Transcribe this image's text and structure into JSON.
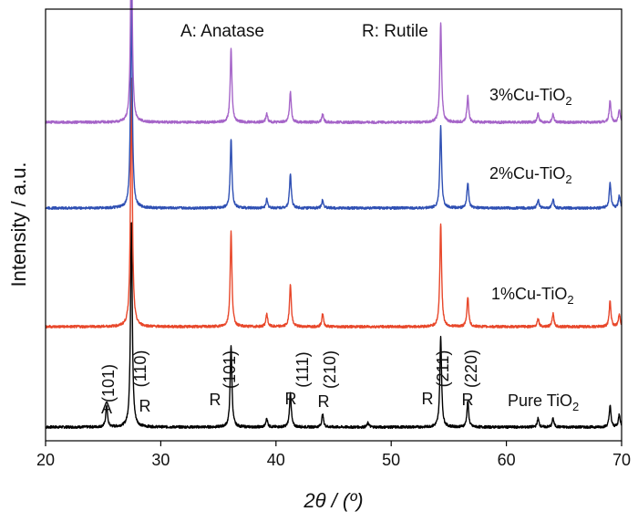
{
  "chart_data": {
    "type": "line",
    "xlabel": "2θ / (º)",
    "ylabel": "Intensity / a.u.",
    "xlim": [
      20,
      70
    ],
    "xticks": [
      "20",
      "30",
      "40",
      "50",
      "60",
      "70"
    ],
    "legend": [
      {
        "text": "A: Anatase"
      },
      {
        "text": "R: Rutile"
      }
    ],
    "series": [
      {
        "name": "Pure TiO",
        "subscript": "2",
        "color": "#000000",
        "label_id": "pure",
        "peaks": [
          {
            "x": 25.3,
            "h": 0.05
          },
          {
            "x": 27.45,
            "h": 0.48
          },
          {
            "x": 36.1,
            "h": 0.19
          },
          {
            "x": 39.2,
            "h": 0.02
          },
          {
            "x": 41.25,
            "h": 0.08
          },
          {
            "x": 44.05,
            "h": 0.03
          },
          {
            "x": 48.0,
            "h": 0.01
          },
          {
            "x": 54.3,
            "h": 0.21
          },
          {
            "x": 56.65,
            "h": 0.06
          },
          {
            "x": 62.75,
            "h": 0.02
          },
          {
            "x": 64.05,
            "h": 0.02
          },
          {
            "x": 69.0,
            "h": 0.05
          },
          {
            "x": 69.8,
            "h": 0.03
          }
        ]
      },
      {
        "name": "1%Cu-TiO",
        "subscript": "2",
        "color": "#e8472a",
        "label_id": "cu1",
        "peaks": [
          {
            "x": 27.45,
            "h": 0.58
          },
          {
            "x": 36.1,
            "h": 0.22
          },
          {
            "x": 39.2,
            "h": 0.03
          },
          {
            "x": 41.25,
            "h": 0.1
          },
          {
            "x": 44.05,
            "h": 0.03
          },
          {
            "x": 54.3,
            "h": 0.24
          },
          {
            "x": 56.65,
            "h": 0.07
          },
          {
            "x": 62.75,
            "h": 0.02
          },
          {
            "x": 64.05,
            "h": 0.03
          },
          {
            "x": 69.0,
            "h": 0.06
          },
          {
            "x": 69.8,
            "h": 0.03
          }
        ]
      },
      {
        "name": "2%Cu-TiO",
        "subscript": "2",
        "color": "#2e4fb3",
        "label_id": "cu2",
        "peaks": [
          {
            "x": 27.45,
            "h": 0.49
          },
          {
            "x": 36.1,
            "h": 0.16
          },
          {
            "x": 39.2,
            "h": 0.02
          },
          {
            "x": 41.25,
            "h": 0.08
          },
          {
            "x": 44.05,
            "h": 0.02
          },
          {
            "x": 54.3,
            "h": 0.19
          },
          {
            "x": 56.65,
            "h": 0.06
          },
          {
            "x": 62.75,
            "h": 0.02
          },
          {
            "x": 64.05,
            "h": 0.02
          },
          {
            "x": 69.0,
            "h": 0.06
          },
          {
            "x": 69.8,
            "h": 0.03
          }
        ]
      },
      {
        "name": "3%Cu-TiO",
        "subscript": "2",
        "color": "#a564c8",
        "label_id": "cu3",
        "peaks": [
          {
            "x": 27.45,
            "h": 0.45
          },
          {
            "x": 36.1,
            "h": 0.17
          },
          {
            "x": 39.2,
            "h": 0.02
          },
          {
            "x": 41.25,
            "h": 0.07
          },
          {
            "x": 44.05,
            "h": 0.02
          },
          {
            "x": 54.3,
            "h": 0.23
          },
          {
            "x": 56.65,
            "h": 0.06
          },
          {
            "x": 62.75,
            "h": 0.02
          },
          {
            "x": 64.05,
            "h": 0.02
          },
          {
            "x": 69.0,
            "h": 0.05
          },
          {
            "x": 69.8,
            "h": 0.03
          }
        ]
      }
    ],
    "peak_annotations": [
      {
        "x": 25.3,
        "phase": "A",
        "hkl": "(101)"
      },
      {
        "x": 27.45,
        "phase": "R",
        "hkl": "(110)"
      },
      {
        "x": 36.1,
        "phase": "R",
        "hkl": "(101)"
      },
      {
        "x": 41.25,
        "phase": "R",
        "hkl": "(111)"
      },
      {
        "x": 44.05,
        "phase": "R",
        "hkl": "(210)"
      },
      {
        "x": 54.3,
        "phase": "R",
        "hkl": "(211)"
      },
      {
        "x": 56.65,
        "phase": "R",
        "hkl": "(220)"
      }
    ]
  }
}
